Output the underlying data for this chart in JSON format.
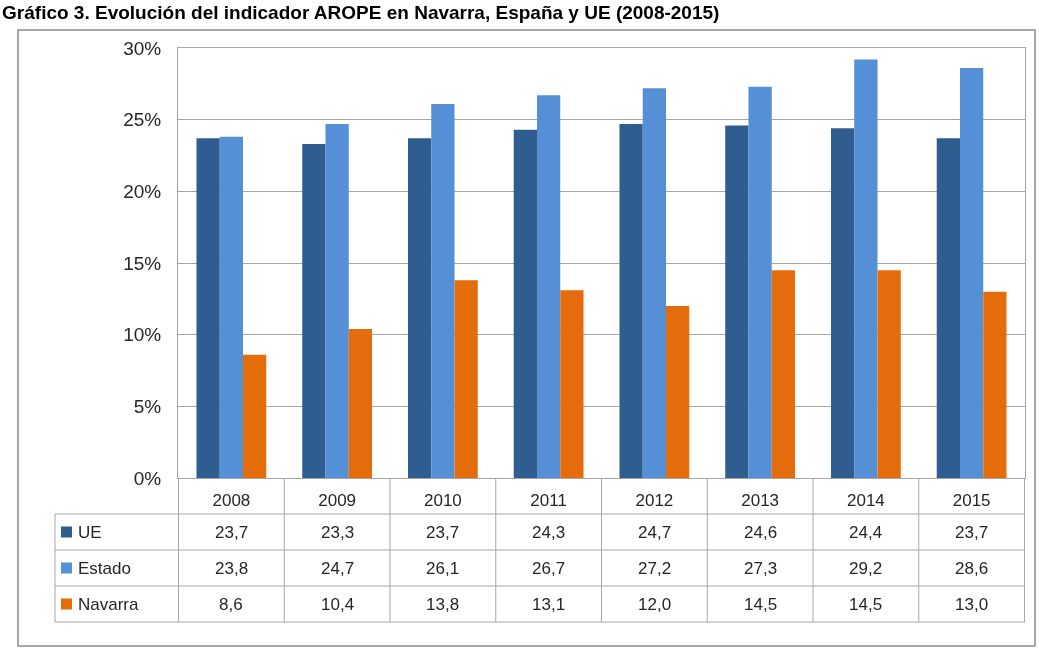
{
  "chart_data": {
    "type": "bar",
    "title": "Gráfico 3. Evolución del indicador AROPE en Navarra, España y UE (2008-2015)",
    "categories": [
      "2008",
      "2009",
      "2010",
      "2011",
      "2012",
      "2013",
      "2014",
      "2015"
    ],
    "series": [
      {
        "name": "UE",
        "color": "#2f5d8f",
        "values": [
          23.7,
          23.3,
          23.7,
          24.3,
          24.7,
          24.6,
          24.4,
          23.7
        ],
        "value_labels": [
          "23,7",
          "23,3",
          "23,7",
          "24,3",
          "24,7",
          "24,6",
          "24,4",
          "23,7"
        ]
      },
      {
        "name": "Estado",
        "color": "#5590d6",
        "values": [
          23.8,
          24.7,
          26.1,
          26.7,
          27.2,
          27.3,
          29.2,
          28.6
        ],
        "value_labels": [
          "23,8",
          "24,7",
          "26,1",
          "26,7",
          "27,2",
          "27,3",
          "29,2",
          "28,6"
        ]
      },
      {
        "name": "Navarra",
        "color": "#e46c0a",
        "values": [
          8.6,
          10.4,
          13.8,
          13.1,
          12.0,
          14.5,
          14.5,
          13.0
        ],
        "value_labels": [
          "8,6",
          "10,4",
          "13,8",
          "13,1",
          "12,0",
          "14,5",
          "14,5",
          "13,0"
        ]
      }
    ],
    "ylim": [
      0,
      30
    ],
    "yticks": [
      {
        "value": 0,
        "label": "0%"
      },
      {
        "value": 5,
        "label": "5%"
      },
      {
        "value": 10,
        "label": "10%"
      },
      {
        "value": 15,
        "label": "15%"
      },
      {
        "value": 20,
        "label": "20%"
      },
      {
        "value": 25,
        "label": "25%"
      },
      {
        "value": 30,
        "label": "30%"
      }
    ],
    "grid": "y",
    "legend": "bottom"
  }
}
